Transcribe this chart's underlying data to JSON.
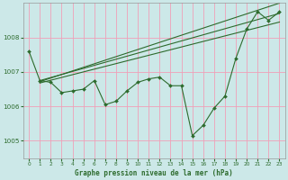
{
  "title": "Graphe pression niveau de la mer (hPa)",
  "bg_color": "#cce8e8",
  "grid_color": "#f0a0b8",
  "line_color": "#2d6b2d",
  "xlim": [
    -0.5,
    23.5
  ],
  "ylim": [
    1004.5,
    1009.0
  ],
  "yticks": [
    1005,
    1006,
    1007,
    1008
  ],
  "xticks": [
    0,
    1,
    2,
    3,
    4,
    5,
    6,
    7,
    8,
    9,
    10,
    11,
    12,
    13,
    14,
    15,
    16,
    17,
    18,
    19,
    20,
    21,
    22,
    23
  ],
  "series1_x": [
    0,
    1,
    2,
    3,
    4,
    5,
    6,
    7,
    8,
    9,
    10,
    11,
    12,
    13,
    14,
    15,
    16,
    17,
    18,
    19,
    20,
    21,
    22,
    23
  ],
  "series1_y": [
    1007.6,
    1006.75,
    1006.7,
    1006.4,
    1006.45,
    1006.5,
    1006.75,
    1006.05,
    1006.15,
    1006.45,
    1006.7,
    1006.8,
    1006.85,
    1006.6,
    1006.6,
    1005.15,
    1005.45,
    1005.95,
    1006.3,
    1007.4,
    1008.25,
    1008.75,
    1008.5,
    1008.75
  ],
  "trend1_x": [
    1,
    23
  ],
  "trend1_y": [
    1006.75,
    1008.7
  ],
  "trend2_x": [
    1,
    23
  ],
  "trend2_y": [
    1006.72,
    1009.0
  ],
  "trend3_x": [
    1,
    23
  ],
  "trend3_y": [
    1006.68,
    1008.45
  ]
}
